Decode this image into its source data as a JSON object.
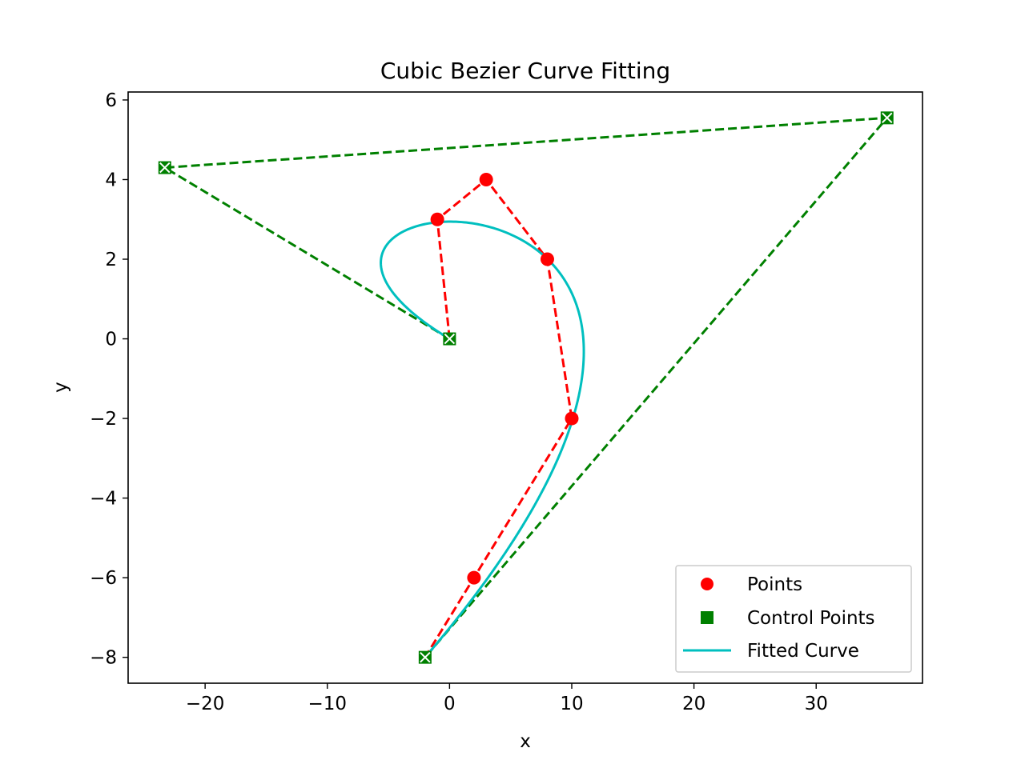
{
  "chart_data": {
    "type": "line",
    "title": "Cubic Bezier Curve Fitting",
    "xlabel": "x",
    "ylabel": "y",
    "xlim": [
      -26.3,
      38.7
    ],
    "ylim": [
      -8.65,
      6.2
    ],
    "xticks": [
      -20,
      -10,
      0,
      10,
      20,
      30
    ],
    "yticks": [
      -8,
      -6,
      -4,
      -2,
      0,
      2,
      4,
      6
    ],
    "legend_position": "lower right",
    "series": [
      {
        "name": "Points",
        "style": "dashed-line-with-circle-markers",
        "color": "#ff0000",
        "points": [
          [
            0,
            0
          ],
          [
            -1,
            3
          ],
          [
            3,
            4
          ],
          [
            8,
            2
          ],
          [
            10,
            -2
          ],
          [
            2,
            -6
          ],
          [
            -2,
            -8
          ]
        ]
      },
      {
        "name": "Control Points",
        "style": "dashed-line-with-square-x-markers",
        "color": "#008000",
        "points": [
          [
            0,
            0
          ],
          [
            -23.3,
            4.3
          ],
          [
            35.8,
            5.55
          ],
          [
            -2,
            -8
          ]
        ]
      },
      {
        "name": "Fitted Curve",
        "style": "solid-line",
        "color": "#00bfbf",
        "bezier_control_points": [
          [
            0,
            0
          ],
          [
            -23.3,
            4.3
          ],
          [
            35.8,
            5.55
          ],
          [
            -2,
            -8
          ]
        ]
      }
    ]
  }
}
